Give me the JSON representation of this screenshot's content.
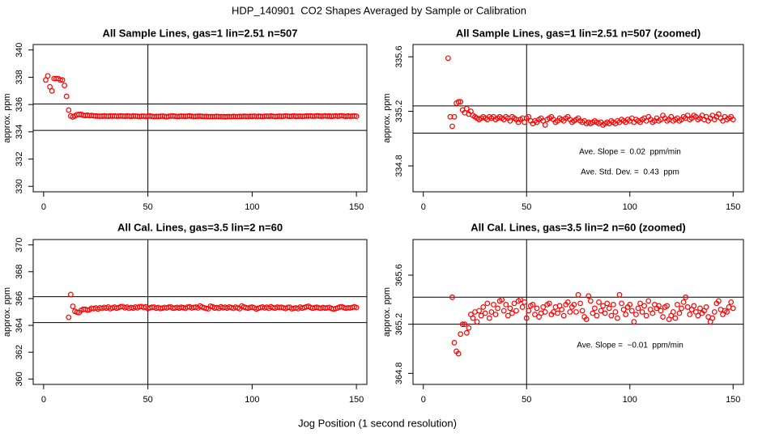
{
  "title": "HDP_140901  CO2 Shapes Averaged by Sample or Calibration",
  "x_label": "Jog Position (1 second resolution)",
  "chart_data": [
    {
      "type": "scatter",
      "title": "All Sample Lines, gas=1 lin=2.51 n=507",
      "y_label": "approx. ppm",
      "color": "#ff0000",
      "xlim": [
        -5,
        155
      ],
      "xticks": [
        0,
        50,
        100,
        150
      ],
      "ylim": [
        329.6,
        340.4
      ],
      "yticks": [
        330,
        332,
        334,
        336,
        338,
        340
      ],
      "hlines": [
        336.04,
        334.1
      ],
      "vline": 50,
      "annotations": [],
      "x": [
        1,
        2,
        3,
        4,
        5,
        6,
        7,
        8,
        9,
        10,
        11,
        12,
        13,
        14,
        15,
        16,
        17,
        18,
        19,
        20,
        21,
        22,
        23,
        24,
        25,
        26,
        27,
        28,
        29,
        30,
        31,
        32,
        33,
        34,
        35,
        36,
        37,
        38,
        39,
        40,
        41,
        42,
        43,
        44,
        45,
        46,
        47,
        48,
        49,
        50,
        51,
        52,
        53,
        54,
        55,
        56,
        57,
        58,
        59,
        60,
        61,
        62,
        63,
        64,
        65,
        66,
        67,
        68,
        69,
        70,
        71,
        72,
        73,
        74,
        75,
        76,
        77,
        78,
        79,
        80,
        81,
        82,
        83,
        84,
        85,
        86,
        87,
        88,
        89,
        90,
        91,
        92,
        93,
        94,
        95,
        96,
        97,
        98,
        99,
        100,
        101,
        102,
        103,
        104,
        105,
        106,
        107,
        108,
        109,
        110,
        111,
        112,
        113,
        114,
        115,
        116,
        117,
        118,
        119,
        120,
        121,
        122,
        123,
        124,
        125,
        126,
        127,
        128,
        129,
        130,
        131,
        132,
        133,
        134,
        135,
        136,
        137,
        138,
        139,
        140,
        141,
        142,
        143,
        144,
        145,
        146,
        147,
        148,
        149,
        150
      ],
      "values": [
        337.8,
        338.1,
        337.3,
        337.0,
        337.9,
        337.9,
        337.9,
        337.8,
        337.8,
        337.4,
        336.6,
        335.59,
        335.16,
        335.09,
        335.16,
        335.26,
        335.27,
        335.27,
        335.21,
        335.19,
        335.22,
        335.18,
        335.2,
        335.17,
        335.16,
        335.15,
        335.14,
        335.15,
        335.16,
        335.15,
        335.14,
        335.16,
        335.15,
        335.16,
        335.14,
        335.15,
        335.16,
        335.15,
        335.14,
        335.16,
        335.15,
        335.13,
        335.16,
        335.15,
        335.14,
        335.12,
        335.14,
        335.15,
        335.12,
        335.15,
        335.16,
        335.13,
        335.11,
        335.13,
        335.12,
        335.14,
        335.15,
        335.13,
        335.1,
        335.14,
        335.15,
        335.16,
        335.14,
        335.12,
        335.13,
        335.15,
        335.14,
        335.13,
        335.15,
        335.16,
        335.14,
        335.12,
        335.13,
        335.14,
        335.15,
        335.13,
        335.12,
        335.13,
        335.11,
        335.12,
        335.11,
        335.12,
        335.13,
        335.12,
        335.11,
        335.12,
        335.1,
        335.11,
        335.12,
        335.11,
        335.13,
        335.12,
        335.11,
        335.13,
        335.12,
        335.14,
        335.13,
        335.12,
        335.14,
        335.13,
        335.15,
        335.12,
        335.14,
        335.13,
        335.12,
        335.14,
        335.15,
        335.13,
        335.16,
        335.14,
        335.12,
        335.13,
        335.15,
        335.13,
        335.14,
        335.17,
        335.15,
        335.13,
        335.14,
        335.16,
        335.13,
        335.14,
        335.15,
        335.13,
        335.14,
        335.16,
        335.15,
        335.17,
        335.14,
        335.15,
        335.17,
        335.16,
        335.14,
        335.15,
        335.17,
        335.14,
        335.16,
        335.13,
        335.15,
        335.17,
        335.14,
        335.16,
        335.18,
        335.15,
        335.13,
        335.16,
        335.14,
        335.15,
        335.16,
        335.14
      ]
    },
    {
      "type": "scatter",
      "title": "All Sample Lines, gas=1 lin=2.51 n=507 (zoomed)",
      "y_label": "approx. ppm",
      "color": "#ff0000",
      "xlim": [
        -5,
        155
      ],
      "xticks": [
        0,
        50,
        100,
        150
      ],
      "ylim": [
        334.61,
        335.69
      ],
      "yticks": [
        334.8,
        335.2,
        335.6
      ],
      "hlines": [
        335.24,
        335.04
      ],
      "vline": 50,
      "annotations": [
        "Ave. Slope =  0.02  ppm/min",
        "Ave. Std. Dev. =  0.43  ppm"
      ],
      "x": [
        12,
        13,
        14,
        15,
        16,
        17,
        18,
        19,
        20,
        21,
        22,
        23,
        24,
        25,
        26,
        27,
        28,
        29,
        30,
        31,
        32,
        33,
        34,
        35,
        36,
        37,
        38,
        39,
        40,
        41,
        42,
        43,
        44,
        45,
        46,
        47,
        48,
        49,
        50,
        51,
        52,
        53,
        54,
        55,
        56,
        57,
        58,
        59,
        60,
        61,
        62,
        63,
        64,
        65,
        66,
        67,
        68,
        69,
        70,
        71,
        72,
        73,
        74,
        75,
        76,
        77,
        78,
        79,
        80,
        81,
        82,
        83,
        84,
        85,
        86,
        87,
        88,
        89,
        90,
        91,
        92,
        93,
        94,
        95,
        96,
        97,
        98,
        99,
        100,
        101,
        102,
        103,
        104,
        105,
        106,
        107,
        108,
        109,
        110,
        111,
        112,
        113,
        114,
        115,
        116,
        117,
        118,
        119,
        120,
        121,
        122,
        123,
        124,
        125,
        126,
        127,
        128,
        129,
        130,
        131,
        132,
        133,
        134,
        135,
        136,
        137,
        138,
        139,
        140,
        141,
        142,
        143,
        144,
        145,
        146,
        147,
        148,
        149,
        150
      ],
      "values": [
        335.59,
        335.16,
        335.09,
        335.16,
        335.26,
        335.27,
        335.27,
        335.21,
        335.19,
        335.22,
        335.18,
        335.2,
        335.17,
        335.16,
        335.15,
        335.14,
        335.15,
        335.16,
        335.15,
        335.14,
        335.16,
        335.15,
        335.16,
        335.14,
        335.15,
        335.16,
        335.15,
        335.14,
        335.16,
        335.15,
        335.13,
        335.16,
        335.15,
        335.14,
        335.12,
        335.14,
        335.15,
        335.12,
        335.15,
        335.16,
        335.13,
        335.11,
        335.13,
        335.12,
        335.14,
        335.15,
        335.13,
        335.1,
        335.14,
        335.15,
        335.16,
        335.14,
        335.12,
        335.13,
        335.15,
        335.14,
        335.13,
        335.15,
        335.16,
        335.14,
        335.12,
        335.13,
        335.14,
        335.15,
        335.13,
        335.12,
        335.13,
        335.11,
        335.12,
        335.11,
        335.12,
        335.13,
        335.12,
        335.11,
        335.12,
        335.1,
        335.11,
        335.12,
        335.11,
        335.13,
        335.12,
        335.11,
        335.13,
        335.12,
        335.14,
        335.13,
        335.12,
        335.14,
        335.13,
        335.15,
        335.12,
        335.14,
        335.13,
        335.12,
        335.14,
        335.15,
        335.13,
        335.16,
        335.14,
        335.12,
        335.13,
        335.15,
        335.13,
        335.14,
        335.17,
        335.15,
        335.13,
        335.14,
        335.16,
        335.13,
        335.14,
        335.15,
        335.13,
        335.14,
        335.16,
        335.15,
        335.17,
        335.14,
        335.15,
        335.17,
        335.16,
        335.14,
        335.15,
        335.17,
        335.14,
        335.16,
        335.13,
        335.15,
        335.17,
        335.14,
        335.16,
        335.18,
        335.15,
        335.13,
        335.16,
        335.14,
        335.15,
        335.16,
        335.14
      ]
    },
    {
      "type": "scatter",
      "title": "All Cal. Lines, gas=3.5 lin=2 n=60",
      "y_label": "approx. ppm",
      "color": "#ff0000",
      "xlim": [
        -5,
        155
      ],
      "xticks": [
        0,
        50,
        100,
        150
      ],
      "ylim": [
        359.6,
        370.4
      ],
      "yticks": [
        360,
        362,
        364,
        366,
        368,
        370
      ],
      "hlines": [
        366.14,
        364.21
      ],
      "vline": 50,
      "annotations": [],
      "x": [
        12,
        13,
        14,
        15,
        16,
        17,
        18,
        19,
        20,
        21,
        22,
        23,
        24,
        25,
        26,
        27,
        28,
        29,
        30,
        31,
        32,
        33,
        34,
        35,
        36,
        37,
        38,
        39,
        40,
        41,
        42,
        43,
        44,
        45,
        46,
        47,
        48,
        49,
        50,
        51,
        52,
        53,
        54,
        55,
        56,
        57,
        58,
        59,
        60,
        61,
        62,
        63,
        64,
        65,
        66,
        67,
        68,
        69,
        70,
        71,
        72,
        73,
        74,
        75,
        76,
        77,
        78,
        79,
        80,
        81,
        82,
        83,
        84,
        85,
        86,
        87,
        88,
        89,
        90,
        91,
        92,
        93,
        94,
        95,
        96,
        97,
        98,
        99,
        100,
        101,
        102,
        103,
        104,
        105,
        106,
        107,
        108,
        109,
        110,
        111,
        112,
        113,
        114,
        115,
        116,
        117,
        118,
        119,
        120,
        121,
        122,
        123,
        124,
        125,
        126,
        127,
        128,
        129,
        130,
        131,
        132,
        133,
        134,
        135,
        136,
        137,
        138,
        139,
        140,
        141,
        142,
        143,
        144,
        145,
        146,
        147,
        148,
        149,
        150
      ],
      "values": [
        364.6,
        366.3,
        365.42,
        365.05,
        364.98,
        364.96,
        365.12,
        365.2,
        365.2,
        365.13,
        365.17,
        365.28,
        365.25,
        365.3,
        365.22,
        365.31,
        365.27,
        365.34,
        365.29,
        365.37,
        365.25,
        365.3,
        365.36,
        365.28,
        365.33,
        365.39,
        365.4,
        365.31,
        365.36,
        365.27,
        365.33,
        365.29,
        365.37,
        365.31,
        365.39,
        365.4,
        365.34,
        365.38,
        365.25,
        365.31,
        365.35,
        365.36,
        365.28,
        365.33,
        365.26,
        365.29,
        365.34,
        365.3,
        365.36,
        365.37,
        365.28,
        365.3,
        365.34,
        365.29,
        365.35,
        365.32,
        365.27,
        365.36,
        365.38,
        365.3,
        365.34,
        365.36,
        365.3,
        365.44,
        365.37,
        365.31,
        365.26,
        365.24,
        365.43,
        365.39,
        365.29,
        365.33,
        365.27,
        365.38,
        365.31,
        365.35,
        365.29,
        365.37,
        365.33,
        365.27,
        365.36,
        365.3,
        365.25,
        365.44,
        365.37,
        365.32,
        365.28,
        365.34,
        365.36,
        365.31,
        365.22,
        365.28,
        365.33,
        365.37,
        365.3,
        365.35,
        365.27,
        365.39,
        365.32,
        365.29,
        365.36,
        365.33,
        365.35,
        365.31,
        365.26,
        365.34,
        365.35,
        365.24,
        365.27,
        365.3,
        365.25,
        365.36,
        365.29,
        365.33,
        365.38,
        365.42,
        365.34,
        365.28,
        365.32,
        365.35,
        365.3,
        365.27,
        365.33,
        365.29,
        365.31,
        365.34,
        365.26,
        365.22,
        365.25,
        365.3,
        365.37,
        365.39,
        365.32,
        365.28,
        365.31,
        365.3,
        365.34,
        365.38,
        365.33
      ]
    },
    {
      "type": "scatter",
      "title": "All Cal. Lines, gas=3.5 lin=2 n=60 (zoomed)",
      "y_label": "approx. ppm",
      "color": "#ff0000",
      "xlim": [
        -5,
        155
      ],
      "xticks": [
        0,
        50,
        100,
        150
      ],
      "ylim": [
        364.71,
        365.89
      ],
      "yticks": [
        364.8,
        365.2,
        365.6
      ],
      "hlines": [
        365.42,
        365.2
      ],
      "vline": 50,
      "annotations": [
        "Ave. Slope =  −0.01  ppm/min"
      ],
      "x": [
        14,
        15,
        16,
        17,
        18,
        19,
        20,
        21,
        22,
        23,
        24,
        25,
        26,
        27,
        28,
        29,
        30,
        31,
        32,
        33,
        34,
        35,
        36,
        37,
        38,
        39,
        40,
        41,
        42,
        43,
        44,
        45,
        46,
        47,
        48,
        49,
        50,
        51,
        52,
        53,
        54,
        55,
        56,
        57,
        58,
        59,
        60,
        61,
        62,
        63,
        64,
        65,
        66,
        67,
        68,
        69,
        70,
        71,
        72,
        73,
        74,
        75,
        76,
        77,
        78,
        79,
        80,
        81,
        82,
        83,
        84,
        85,
        86,
        87,
        88,
        89,
        90,
        91,
        92,
        93,
        94,
        95,
        96,
        97,
        98,
        99,
        100,
        101,
        102,
        103,
        104,
        105,
        106,
        107,
        108,
        109,
        110,
        111,
        112,
        113,
        114,
        115,
        116,
        117,
        118,
        119,
        120,
        121,
        122,
        123,
        124,
        125,
        126,
        127,
        128,
        129,
        130,
        131,
        132,
        133,
        134,
        135,
        136,
        137,
        138,
        139,
        140,
        141,
        142,
        143,
        144,
        145,
        146,
        147,
        148,
        149,
        150
      ],
      "values": [
        365.42,
        365.05,
        364.98,
        364.96,
        365.12,
        365.2,
        365.2,
        365.13,
        365.17,
        365.28,
        365.25,
        365.3,
        365.22,
        365.31,
        365.27,
        365.34,
        365.29,
        365.37,
        365.25,
        365.3,
        365.36,
        365.28,
        365.33,
        365.39,
        365.4,
        365.31,
        365.36,
        365.27,
        365.33,
        365.29,
        365.37,
        365.31,
        365.39,
        365.4,
        365.34,
        365.38,
        365.25,
        365.31,
        365.35,
        365.36,
        365.28,
        365.33,
        365.26,
        365.29,
        365.34,
        365.3,
        365.36,
        365.37,
        365.28,
        365.3,
        365.34,
        365.29,
        365.35,
        365.32,
        365.27,
        365.36,
        365.38,
        365.3,
        365.34,
        365.36,
        365.3,
        365.44,
        365.37,
        365.31,
        365.26,
        365.24,
        365.43,
        365.39,
        365.29,
        365.33,
        365.27,
        365.38,
        365.31,
        365.35,
        365.29,
        365.37,
        365.33,
        365.27,
        365.36,
        365.3,
        365.25,
        365.44,
        365.37,
        365.32,
        365.28,
        365.34,
        365.36,
        365.31,
        365.22,
        365.28,
        365.33,
        365.37,
        365.3,
        365.35,
        365.27,
        365.39,
        365.32,
        365.29,
        365.36,
        365.33,
        365.35,
        365.31,
        365.26,
        365.34,
        365.35,
        365.24,
        365.27,
        365.3,
        365.25,
        365.36,
        365.29,
        365.33,
        365.38,
        365.42,
        365.34,
        365.28,
        365.32,
        365.35,
        365.3,
        365.27,
        365.33,
        365.29,
        365.31,
        365.34,
        365.26,
        365.22,
        365.25,
        365.3,
        365.37,
        365.39,
        365.32,
        365.28,
        365.31,
        365.3,
        365.34,
        365.38,
        365.33
      ]
    }
  ]
}
